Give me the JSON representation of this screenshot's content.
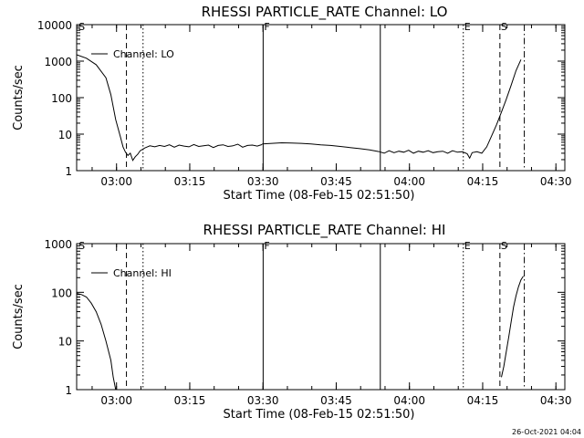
{
  "chart_data": [
    {
      "type": "line",
      "title": "RHESSI PARTICLE_RATE Channel: LO",
      "xlabel": "Start Time (08-Feb-15 02:51:50)",
      "ylabel": "Counts/sec",
      "yscale": "log",
      "ylim": [
        1,
        10000
      ],
      "y_ticks": [
        "1",
        "10",
        "100",
        "1000",
        "10000"
      ],
      "x_ticks": [
        "03:00",
        "03:15",
        "03:30",
        "03:45",
        "04:00",
        "04:15",
        "04:30"
      ],
      "xlim_minutes_from_start": [
        0,
        100
      ],
      "legend": {
        "label": "Channel: LO",
        "position": "top-left"
      },
      "markers": [
        {
          "label": "S",
          "t": 0.2,
          "style": "none"
        },
        {
          "label": "",
          "t": 10.2,
          "style": "dashed"
        },
        {
          "label": "",
          "t": 13.6,
          "style": "dotted"
        },
        {
          "label": "F",
          "t": 38.2,
          "style": "solid"
        },
        {
          "label": "",
          "t": 62.2,
          "style": "solid"
        },
        {
          "label": "E",
          "t": 79.2,
          "style": "dotted"
        },
        {
          "label": "S",
          "t": 86.7,
          "style": "dashed"
        },
        {
          "label": "",
          "t": 91.7,
          "style": "dashdot"
        }
      ],
      "series": [
        {
          "name": "Channel: LO",
          "segments": [
            {
              "x": [
                0,
                2,
                4,
                6,
                7,
                8,
                9,
                9.5,
                10,
                10.5,
                11,
                11.5,
                12,
                12.5,
                13,
                14,
                15,
                16,
                17,
                18,
                19,
                20,
                21,
                22,
                23,
                24,
                25,
                26,
                27,
                28,
                29,
                30,
                31,
                32,
                33,
                34,
                35,
                36,
                37,
                38
              ],
              "y": [
                1500,
                1200,
                800,
                350,
                120,
                25,
                8,
                4.5,
                3.2,
                2.6,
                3.0,
                1.9,
                2.4,
                2.8,
                3.5,
                4.2,
                4.8,
                4.5,
                4.9,
                4.6,
                5.1,
                4.4,
                5.0,
                4.7,
                4.5,
                5.2,
                4.6,
                4.8,
                5.0,
                4.3,
                4.9,
                5.1,
                4.6,
                4.8,
                5.3,
                4.4,
                4.9,
                5.0,
                4.7,
                5.2
              ]
            },
            {
              "x": [
                38,
                40,
                42,
                44,
                46,
                48,
                50,
                52,
                54,
                56,
                58,
                60,
                62
              ],
              "y": [
                5.4,
                5.6,
                5.8,
                5.7,
                5.6,
                5.4,
                5.1,
                4.9,
                4.6,
                4.3,
                4.0,
                3.7,
                3.3
              ]
            },
            {
              "x": [
                62,
                63,
                64,
                65,
                66,
                67,
                68,
                69,
                70,
                71,
                72,
                73,
                74,
                75,
                76,
                77,
                78,
                79,
                80,
                80.5,
                81,
                82,
                83,
                84,
                85,
                86,
                87,
                88,
                89,
                90,
                91
              ],
              "y": [
                3.3,
                3.0,
                3.5,
                3.1,
                3.4,
                3.2,
                3.6,
                3.0,
                3.4,
                3.2,
                3.5,
                3.1,
                3.3,
                3.4,
                3.0,
                3.5,
                3.2,
                3.3,
                2.9,
                2.2,
                3.1,
                3.3,
                3.0,
                4.5,
                9,
                18,
                40,
                90,
                220,
                550,
                1100
              ]
            }
          ]
        }
      ]
    },
    {
      "type": "line",
      "title": "RHESSI PARTICLE_RATE Channel: HI",
      "xlabel": "Start Time (08-Feb-15 02:51:50)",
      "ylabel": "Counts/sec",
      "yscale": "log",
      "ylim": [
        1,
        1000
      ],
      "y_ticks": [
        "1",
        "10",
        "100",
        "1000"
      ],
      "x_ticks": [
        "03:00",
        "03:15",
        "03:30",
        "03:45",
        "04:00",
        "04:15",
        "04:30"
      ],
      "xlim_minutes_from_start": [
        0,
        100
      ],
      "legend": {
        "label": "Channel: HI",
        "position": "top-left"
      },
      "markers": [
        {
          "label": "S",
          "t": 0.2,
          "style": "none"
        },
        {
          "label": "",
          "t": 10.2,
          "style": "dashed"
        },
        {
          "label": "",
          "t": 13.6,
          "style": "dotted"
        },
        {
          "label": "F",
          "t": 38.2,
          "style": "solid"
        },
        {
          "label": "",
          "t": 62.2,
          "style": "solid"
        },
        {
          "label": "E",
          "t": 79.2,
          "style": "dotted"
        },
        {
          "label": "S",
          "t": 86.7,
          "style": "dashed"
        },
        {
          "label": "",
          "t": 91.7,
          "style": "dashdot"
        }
      ],
      "series": [
        {
          "name": "Channel: HI",
          "segments": [
            {
              "x": [
                0,
                1,
                2,
                3,
                4,
                5,
                6,
                7,
                7.5,
                8
              ],
              "y": [
                95,
                90,
                80,
                60,
                40,
                22,
                10,
                4,
                1.8,
                1
              ]
            },
            {
              "x": [
                87,
                87.5,
                88,
                88.5,
                89,
                89.5,
                90,
                90.5,
                91,
                91.5
              ],
              "y": [
                1.8,
                3,
                6,
                12,
                25,
                50,
                85,
                130,
                180,
                215
              ]
            }
          ]
        }
      ]
    }
  ],
  "footer": {
    "timestamp": "26-Oct-2021 04:04"
  }
}
